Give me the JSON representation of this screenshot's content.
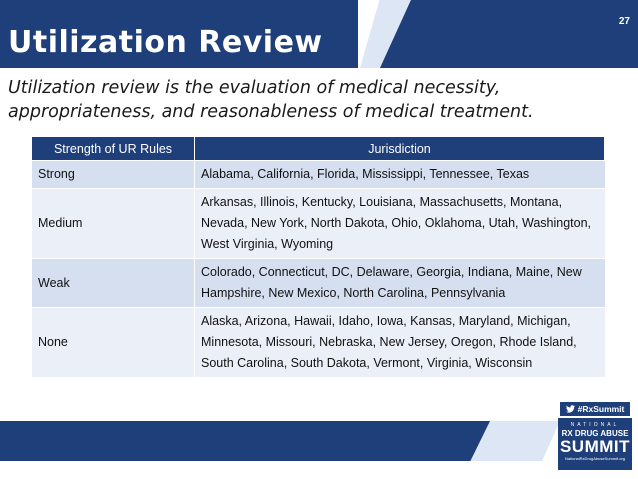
{
  "header": {
    "title": "Utilization Review",
    "slide_number": "27"
  },
  "intro": {
    "text": "Utilization review is the evaluation of medical necessity, appropriateness, and reasonableness of medical treatment."
  },
  "table": {
    "headers": [
      "Strength of UR Rules",
      "Jurisdiction"
    ],
    "rows": [
      {
        "strength": "Strong",
        "jurisdiction": "Alabama, California, Florida, Mississippi, Tennessee, Texas"
      },
      {
        "strength": "Medium",
        "jurisdiction": "Arkansas, Illinois, Kentucky, Louisiana, Massachusetts, Montana, Nevada, New York, North Dakota, Ohio, Oklahoma, Utah, Washington, West Virginia, Wyoming"
      },
      {
        "strength": "Weak",
        "jurisdiction": "Colorado, Connecticut, DC, Delaware, Georgia, Indiana, Maine, New Hampshire, New Mexico, North Carolina, Pennsylvania"
      },
      {
        "strength": "None",
        "jurisdiction": "Alaska, Arizona, Hawaii, Idaho, Iowa, Kansas, Maryland, Michigan, Minnesota, Missouri, Nebraska, New Jersey, Oregon, Rhode Island, South Carolina, South Dakota, Vermont, Virginia, Wisconsin"
      }
    ]
  },
  "footer": {
    "hashtag": "#RxSummit",
    "logo_national": "NATIONAL",
    "logo_line1": "RX DRUG ABUSE",
    "logo_line2": "SUMMIT",
    "logo_url": "NationalRxDrugAbuseSummit.org"
  },
  "colors": {
    "brand_navy": "#1f3f7a",
    "light_band": "#dce6f4",
    "row_dark": "#d6dff0",
    "row_light": "#ebeff8"
  },
  "icons": {
    "hashtag_icon": "twitter-bird-icon"
  }
}
